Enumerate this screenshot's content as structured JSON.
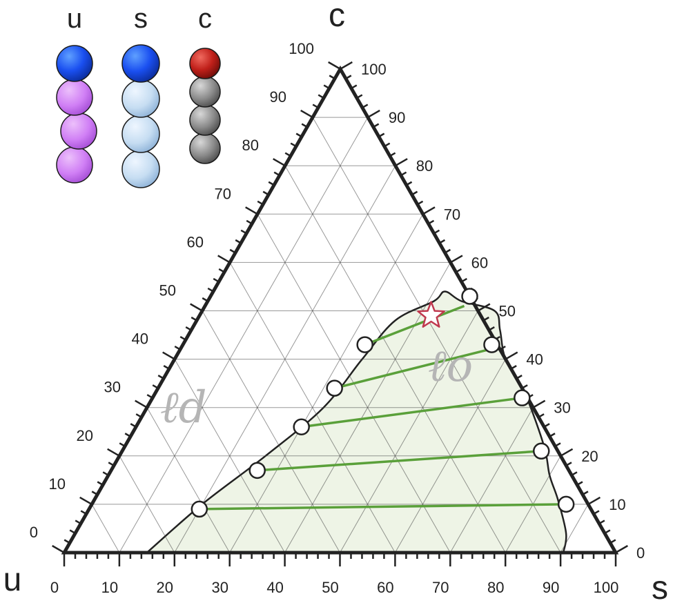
{
  "corners": {
    "top": "c",
    "left": "u",
    "right": "s"
  },
  "molecules": [
    {
      "label": "u",
      "head": "#1a4ff0",
      "tail": "#d07ff5",
      "beads": 3
    },
    {
      "label": "s",
      "head": "#1a4ff0",
      "tail": "#c6ddf2",
      "beads": 3
    },
    {
      "label": "c",
      "head": "#c0201a",
      "tail": "#8a8a8a",
      "beads": 3
    }
  ],
  "phase_labels": {
    "disordered": "ℓd",
    "ordered": "ℓo"
  },
  "axes": {
    "ticks": [
      0,
      10,
      20,
      30,
      40,
      50,
      60,
      70,
      80,
      90,
      100
    ],
    "left_ticks": [
      "0",
      "10",
      "20",
      "30",
      "40",
      "50",
      "60",
      "70",
      "80",
      "90",
      "100"
    ],
    "right_ticks": [
      "100",
      "90",
      "80",
      "70",
      "60",
      "50",
      "40",
      "30",
      "20",
      "10",
      "0"
    ],
    "bottom_ticks": [
      "0",
      "10",
      "20",
      "30",
      "40",
      "50",
      "60",
      "70",
      "80",
      "90",
      "100"
    ]
  },
  "colors": {
    "frame": "#222222",
    "region_fill": "#eef4e6",
    "tie_line": "#5aa03a",
    "star": "#c0394f"
  },
  "chart_data": {
    "type": "ternary",
    "components": [
      "u",
      "s",
      "c"
    ],
    "two_phase_boundary": [
      {
        "s": 15,
        "c": 0
      },
      {
        "s": 20,
        "c": 10
      },
      {
        "s": 26.5,
        "c": 20
      },
      {
        "s": 32,
        "c": 30
      },
      {
        "s": 34,
        "c": 40
      },
      {
        "s": 36,
        "c": 48
      },
      {
        "s": 41,
        "c": 52
      },
      {
        "s": 42,
        "c": 54
      },
      {
        "s": 46,
        "c": 52
      },
      {
        "s": 53,
        "c": 50
      },
      {
        "s": 56,
        "c": 46
      },
      {
        "s": 60,
        "c": 40
      },
      {
        "s": 67,
        "c": 33
      },
      {
        "s": 76,
        "c": 22
      },
      {
        "s": 80,
        "c": 16
      },
      {
        "s": 84,
        "c": 11
      },
      {
        "s": 89,
        "c": 4
      },
      {
        "s": 90.5,
        "c": 0
      }
    ],
    "tie_lines": [
      {
        "ld": {
          "s": 20,
          "c": 9
        },
        "lo": {
          "s": 86,
          "c": 10
        }
      },
      {
        "ld": {
          "s": 26.5,
          "c": 17
        },
        "lo": {
          "s": 76,
          "c": 21
        }
      },
      {
        "ld": {
          "s": 30,
          "c": 26
        },
        "lo": {
          "s": 67,
          "c": 32
        }
      },
      {
        "ld": {
          "s": 32,
          "c": 34
        },
        "lo": {
          "s": 56,
          "c": 42
        }
      },
      {
        "ld": {
          "s": 33,
          "c": 43
        },
        "lo": {
          "s": 47,
          "c": 51
        }
      }
    ],
    "critical_point": {
      "s": 42,
      "c": 49
    },
    "endpoint_markers": [
      {
        "s": 20,
        "c": 9
      },
      {
        "s": 26.5,
        "c": 17
      },
      {
        "s": 30,
        "c": 26
      },
      {
        "s": 32,
        "c": 34
      },
      {
        "s": 33,
        "c": 43
      },
      {
        "s": 47,
        "c": 53
      },
      {
        "s": 56,
        "c": 43
      },
      {
        "s": 67,
        "c": 32
      },
      {
        "s": 76,
        "c": 21
      },
      {
        "s": 86,
        "c": 10
      }
    ]
  }
}
